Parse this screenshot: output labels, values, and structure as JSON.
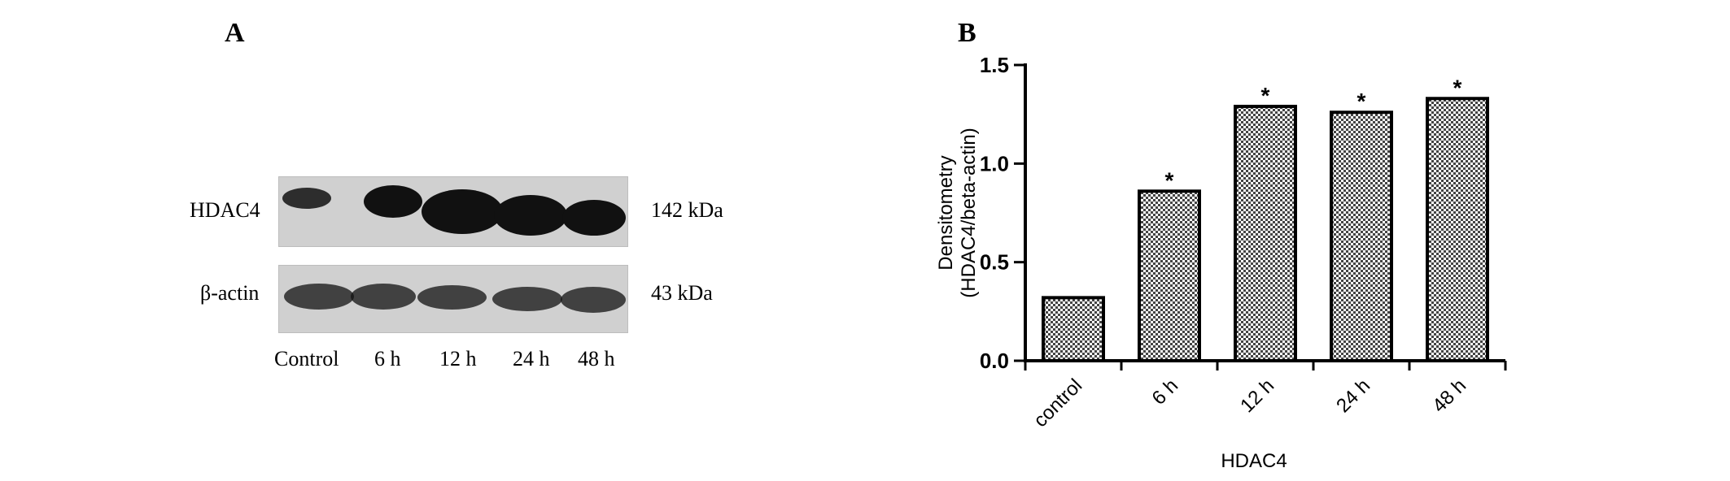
{
  "panel_a": {
    "letter": "A",
    "rows": [
      {
        "label": "HDAC4",
        "kda": "142 kDa"
      },
      {
        "label": "β-actin",
        "kda": "43 kDa"
      }
    ],
    "lanes": [
      "Control",
      "6 h",
      "12 h",
      "24 h",
      "48 h"
    ]
  },
  "panel_b": {
    "letter": "B"
  },
  "chart_data": {
    "type": "bar",
    "categories": [
      "control",
      "6 h",
      "12 h",
      "24 h",
      "48 h"
    ],
    "values": [
      0.32,
      0.86,
      1.29,
      1.26,
      1.33
    ],
    "significance": [
      "",
      "*",
      "*",
      "*",
      "*"
    ],
    "xlabel": "HDAC4",
    "ylabel": [
      "Densitometry",
      "(HDAC4/beta-actin)"
    ],
    "ylim": [
      0,
      1.5
    ],
    "yticks": [
      "0.0",
      "0.5",
      "1.0",
      "1.5"
    ],
    "grid": false,
    "bar_fill": "checkered"
  }
}
